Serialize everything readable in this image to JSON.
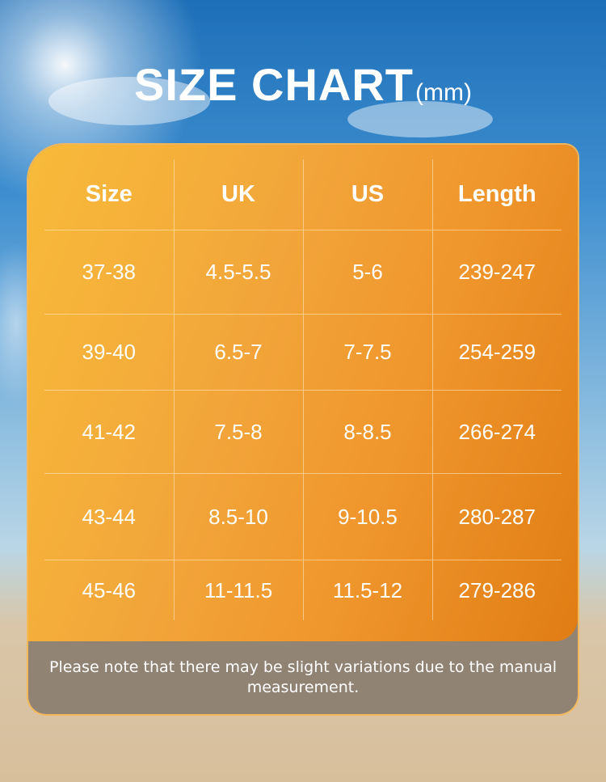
{
  "title": {
    "main": "SIZE CHART",
    "unit": "(mm)"
  },
  "chart_data": {
    "type": "table",
    "columns": [
      "Size",
      "UK",
      "US",
      "Length"
    ],
    "rows": [
      [
        "37-38",
        "4.5-5.5",
        "5-6",
        "239-247"
      ],
      [
        "39-40",
        "6.5-7",
        "7-7.5",
        "254-259"
      ],
      [
        "41-42",
        "7.5-8",
        "8-8.5",
        "266-274"
      ],
      [
        "43-44",
        "8.5-10",
        "9-10.5",
        "280-287"
      ],
      [
        "45-46",
        "11-11.5",
        "11.5-12",
        "279-286"
      ]
    ]
  },
  "note": "Please note that there may be slight variations due to the manual measurement.",
  "colors": {
    "panel": "#f2a53a",
    "text": "#ffffff",
    "note_bg": "#786e64"
  }
}
